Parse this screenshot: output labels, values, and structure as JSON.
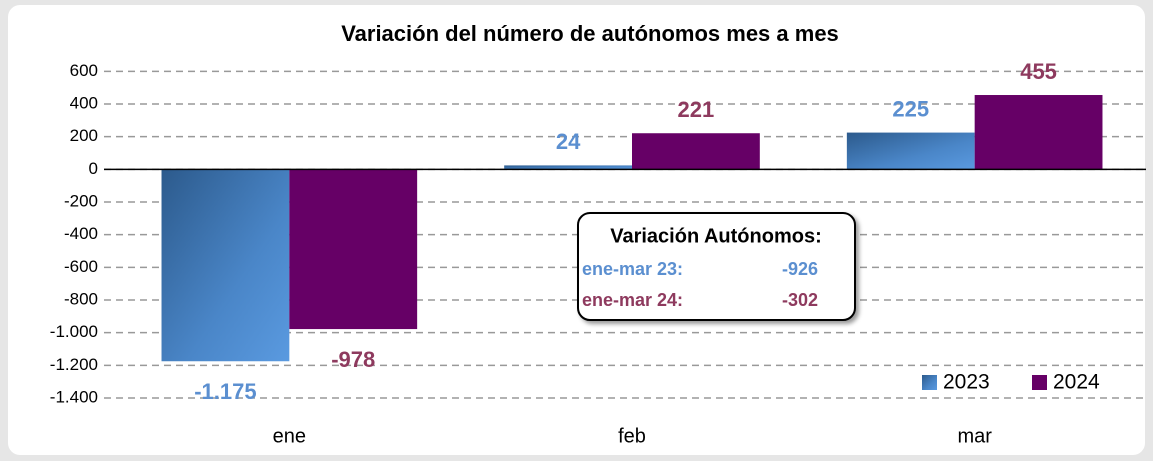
{
  "chart_data": {
    "type": "bar",
    "title": "Variación del número de autónomos mes a mes",
    "categories": [
      "ene",
      "feb",
      "mar"
    ],
    "series": [
      {
        "name": "2023",
        "color": "#4a86c8",
        "label_color": "#5b8fd0",
        "values": [
          -1175,
          24,
          225
        ],
        "value_labels": [
          "-1.175",
          "24",
          "225"
        ]
      },
      {
        "name": "2024",
        "color": "#660066",
        "label_color": "#8e3a5e",
        "values": [
          -978,
          221,
          455
        ],
        "value_labels": [
          "-978",
          "221",
          "455"
        ]
      }
    ],
    "ylim": [
      -1400,
      700
    ],
    "yticks": [
      600,
      400,
      200,
      0,
      -200,
      -400,
      -600,
      -800,
      {
        "value": -1000,
        "label": "-1.000"
      },
      {
        "value": -1200,
        "label": "-1.200"
      },
      {
        "value": -1400,
        "label": "-1.400"
      }
    ],
    "grid": true,
    "legend": "lower right",
    "annotation": {
      "title": "Variación Autónomos:",
      "rows": [
        [
          "ene-mar 23:",
          "-926"
        ],
        [
          "ene-mar 24:",
          "-302"
        ]
      ]
    }
  }
}
